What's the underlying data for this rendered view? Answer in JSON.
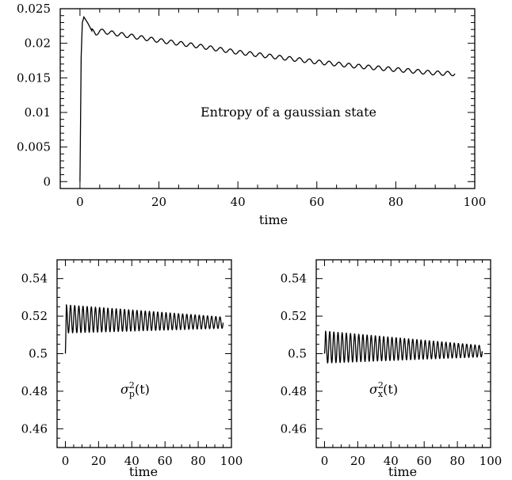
{
  "chart_data": [
    {
      "type": "line",
      "panel": "top",
      "annotation": "Entropy of a gaussian state",
      "xlabel": "time",
      "ylabel": "",
      "xlim": [
        -5,
        100
      ],
      "ylim": [
        -0.001,
        0.025
      ],
      "xticks": [
        "0",
        "20",
        "40",
        "60",
        "80",
        "100"
      ],
      "yticks": [
        "0",
        "0.005",
        "0.01",
        "0.015",
        "0.02",
        "0.025"
      ],
      "series": [
        {
          "x": [
            0,
            0.3,
            0.6,
            1,
            2,
            3,
            4,
            5,
            10,
            20,
            30,
            40,
            50,
            60,
            70,
            80,
            90,
            95
          ],
          "y": [
            0,
            0.018,
            0.023,
            0.0238,
            0.0229,
            0.0218,
            0.0214,
            0.0218,
            0.0213,
            0.0204,
            0.0196,
            0.0187,
            0.018,
            0.0173,
            0.0167,
            0.0162,
            0.0157,
            0.0156
          ]
        }
      ],
      "oscillation_amplitude": 0.0003,
      "oscillation_period": 2.5
    },
    {
      "type": "line",
      "panel": "bottom-left",
      "annotation": "σ²p(t)",
      "xlabel": "time",
      "xlim": [
        -5,
        100
      ],
      "ylim": [
        0.45,
        0.55
      ],
      "xticks": [
        "0",
        "20",
        "40",
        "60",
        "80",
        "100"
      ],
      "yticks": [
        "0.46",
        "0.48",
        "0.5",
        "0.52",
        "0.54"
      ],
      "series": [
        {
          "x_start": 0,
          "x_end": 95,
          "center": [
            0.5185,
            0.5165
          ],
          "amplitude": [
            0.0075,
            0.003
          ],
          "period": 2.5,
          "start_value": 0.5
        }
      ]
    },
    {
      "type": "line",
      "panel": "bottom-right",
      "annotation": "σ²x(t)",
      "xlabel": "time",
      "xlim": [
        -5,
        100
      ],
      "ylim": [
        0.45,
        0.55
      ],
      "xticks": [
        "0",
        "20",
        "40",
        "60",
        "80",
        "100"
      ],
      "yticks": [
        "0.46",
        "0.48",
        "0.5",
        "0.52",
        "0.54"
      ],
      "series": [
        {
          "x_start": 0,
          "x_end": 95,
          "center": [
            0.5035,
            0.5013
          ],
          "amplitude": [
            0.0085,
            0.003
          ],
          "period": 2.5,
          "start_value": 0.5
        }
      ]
    }
  ]
}
